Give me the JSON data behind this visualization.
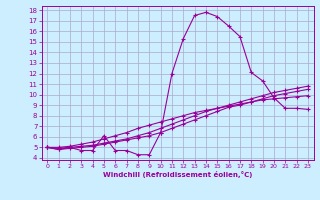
{
  "x": [
    0,
    1,
    2,
    3,
    4,
    5,
    6,
    7,
    8,
    9,
    10,
    11,
    12,
    13,
    14,
    15,
    16,
    17,
    18,
    19,
    20,
    21,
    22,
    23
  ],
  "line1": [
    5.0,
    4.8,
    5.0,
    4.7,
    4.7,
    6.1,
    4.7,
    4.7,
    4.3,
    4.3,
    6.4,
    12.0,
    15.3,
    17.5,
    17.8,
    17.4,
    16.5,
    15.5,
    12.1,
    11.3,
    9.7,
    8.7,
    8.7,
    8.6
  ],
  "line2": [
    5.0,
    4.8,
    4.9,
    5.0,
    5.1,
    5.3,
    5.5,
    5.7,
    5.9,
    6.1,
    6.4,
    6.8,
    7.2,
    7.6,
    8.0,
    8.4,
    8.8,
    9.0,
    9.3,
    9.6,
    9.9,
    10.1,
    10.3,
    10.5
  ],
  "line3": [
    5.0,
    4.9,
    5.0,
    5.1,
    5.2,
    5.4,
    5.6,
    5.8,
    6.1,
    6.4,
    6.8,
    7.2,
    7.6,
    8.0,
    8.4,
    8.7,
    9.0,
    9.3,
    9.6,
    9.9,
    10.2,
    10.4,
    10.6,
    10.8
  ],
  "line4": [
    5.0,
    5.0,
    5.1,
    5.3,
    5.5,
    5.8,
    6.1,
    6.4,
    6.8,
    7.1,
    7.4,
    7.7,
    8.0,
    8.3,
    8.5,
    8.7,
    8.9,
    9.1,
    9.3,
    9.5,
    9.6,
    9.7,
    9.8,
    9.9
  ],
  "line_color": "#990099",
  "bg_color": "#cceeff",
  "grid_color": "#aaaacc",
  "xlabel": "Windchill (Refroidissement éolien,°C)",
  "xlim": [
    -0.5,
    23.5
  ],
  "ylim": [
    3.8,
    18.4
  ],
  "yticks": [
    4,
    5,
    6,
    7,
    8,
    9,
    10,
    11,
    12,
    13,
    14,
    15,
    16,
    17,
    18
  ],
  "xticks": [
    0,
    1,
    2,
    3,
    4,
    5,
    6,
    7,
    8,
    9,
    10,
    11,
    12,
    13,
    14,
    15,
    16,
    17,
    18,
    19,
    20,
    21,
    22,
    23
  ]
}
